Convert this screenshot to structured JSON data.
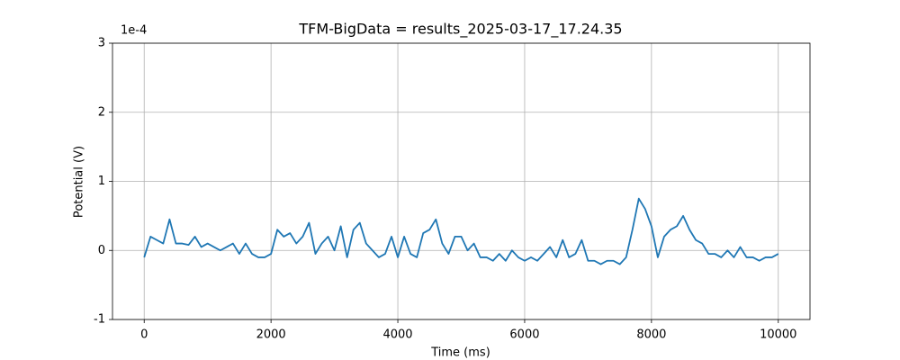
{
  "chart_data": {
    "type": "line",
    "title": "TFM-BigData = results_2025-03-17_17.24.35",
    "x_label": "Time (ms)",
    "y_label": "Potential (V)",
    "y_offset_text": "1e-4",
    "x": [
      0,
      100,
      200,
      300,
      400,
      500,
      600,
      700,
      800,
      900,
      1000,
      1100,
      1200,
      1300,
      1400,
      1500,
      1600,
      1700,
      1800,
      1900,
      2000,
      2100,
      2200,
      2300,
      2400,
      2500,
      2600,
      2700,
      2800,
      2900,
      3000,
      3100,
      3200,
      3300,
      3400,
      3500,
      3600,
      3700,
      3800,
      3900,
      4000,
      4100,
      4200,
      4300,
      4400,
      4500,
      4600,
      4700,
      4800,
      4900,
      5000,
      5100,
      5200,
      5300,
      5400,
      5500,
      5600,
      5700,
      5800,
      5900,
      6000,
      6100,
      6200,
      6300,
      6400,
      6500,
      6600,
      6700,
      6800,
      6900,
      7000,
      7100,
      7200,
      7300,
      7400,
      7500,
      7600,
      7700,
      7800,
      7900,
      8000,
      8100,
      8200,
      8300,
      8400,
      8500,
      8600,
      8700,
      8800,
      8900,
      9000,
      9100,
      9200,
      9300,
      9400,
      9500,
      9600,
      9700,
      9800,
      9900,
      10000
    ],
    "series": [
      {
        "name": "Potential",
        "color": "#1f77b4",
        "values": [
          -0.1,
          0.2,
          0.15,
          0.1,
          0.45,
          0.1,
          0.1,
          0.08,
          0.2,
          0.05,
          0.1,
          0.05,
          0.0,
          0.05,
          0.1,
          -0.05,
          0.1,
          -0.05,
          -0.1,
          -0.1,
          -0.05,
          0.3,
          0.2,
          0.25,
          0.1,
          0.2,
          0.4,
          -0.05,
          0.1,
          0.2,
          0.0,
          0.35,
          -0.1,
          0.3,
          0.4,
          0.1,
          0.0,
          -0.1,
          -0.05,
          0.2,
          -0.1,
          0.2,
          -0.05,
          -0.1,
          0.25,
          0.3,
          0.45,
          0.1,
          -0.05,
          0.2,
          0.2,
          0.0,
          0.1,
          -0.1,
          -0.1,
          -0.15,
          -0.05,
          -0.15,
          0.0,
          -0.1,
          -0.15,
          -0.1,
          -0.15,
          -0.05,
          0.05,
          -0.1,
          0.15,
          -0.1,
          -0.05,
          0.15,
          -0.15,
          -0.15,
          -0.2,
          -0.15,
          -0.15,
          -0.2,
          -0.1,
          0.3,
          0.75,
          0.6,
          0.35,
          -0.1,
          0.2,
          0.3,
          0.35,
          0.5,
          0.3,
          0.15,
          0.1,
          -0.05,
          -0.05,
          -0.1,
          0.0,
          -0.1,
          0.05,
          -0.1,
          -0.1,
          -0.15,
          -0.1,
          -0.1,
          -0.05
        ]
      }
    ],
    "xlim": [
      -500,
      10500
    ],
    "xticks": [
      0,
      2000,
      4000,
      6000,
      8000,
      10000
    ],
    "ylim": [
      -1,
      3
    ],
    "yticks": [
      -1,
      0,
      1,
      2,
      3
    ],
    "grid": true
  }
}
